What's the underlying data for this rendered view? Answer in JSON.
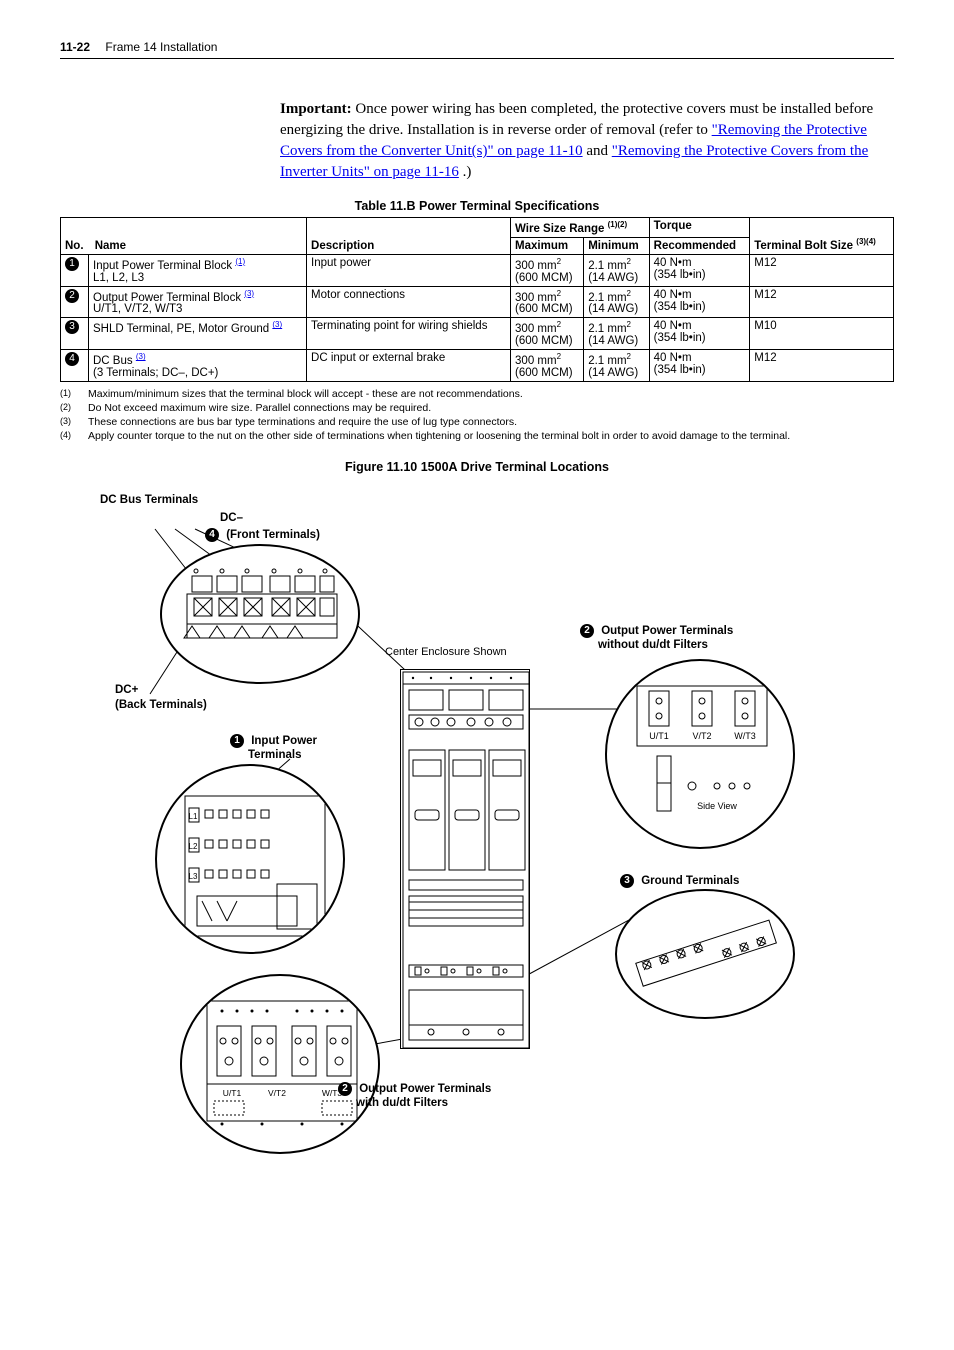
{
  "header": {
    "page_num": "11-22",
    "section": "Frame 14 Installation"
  },
  "important": {
    "label": "Important:",
    "text1": "Once power wiring has been completed, the protective covers must be installed before energizing the drive. Installation is in reverse order of removal (refer to ",
    "link1": "\"Removing the Protective Covers from the Converter Unit(s)\" on page 11-10",
    "text2": " and ",
    "link2": "\"Removing the Protective Covers from the Inverter Units\" on page 11-16",
    "text3": ".)"
  },
  "table_title": "Table 11.B   Power Terminal Specifications",
  "table": {
    "headers": {
      "no": "No.",
      "name": "Name",
      "desc": "Description",
      "wire_range": "Wire Size Range",
      "wire_sup": "(1)(2)",
      "max": "Maximum",
      "min": "Minimum",
      "torque": "Torque",
      "rec": "Recommended",
      "bolt": "Terminal Bolt Size",
      "bolt_sup": "(3)(4)"
    },
    "rows": [
      {
        "num": "1",
        "name": "Input Power Terminal Block",
        "name_sup": "(1)",
        "name_sub": "L1, L2, L3",
        "desc": "Input power",
        "max_a": "300 mm",
        "max_sup": "2",
        "max_b": "(600 MCM)",
        "min_a": "2.1 mm",
        "min_sup": "2",
        "min_b": "(14 AWG)",
        "torque_a": "40 N•m",
        "torque_b": "(354 lb•in)",
        "bolt": "M12"
      },
      {
        "num": "2",
        "name": "Output Power Terminal Block",
        "name_sup": "(3)",
        "name_sub": "U/T1, V/T2, W/T3",
        "desc": "Motor connections",
        "max_a": "300 mm",
        "max_sup": "2",
        "max_b": "(600 MCM)",
        "min_a": "2.1 mm",
        "min_sup": "2",
        "min_b": "(14 AWG)",
        "torque_a": "40 N•m",
        "torque_b": "(354 lb•in)",
        "bolt": "M12"
      },
      {
        "num": "3",
        "name": "SHLD Terminal, PE, Motor Ground",
        "name_sup": "(3)",
        "name_sub": "",
        "desc": "Terminating point for wiring shields",
        "max_a": "300 mm",
        "max_sup": "2",
        "max_b": "(600 MCM)",
        "min_a": "2.1 mm",
        "min_sup": "2",
        "min_b": "(14 AWG)",
        "torque_a": "40 N•m",
        "torque_b": "(354 lb•in)",
        "bolt": "M10"
      },
      {
        "num": "4",
        "name": "DC Bus",
        "name_sup": "(3)",
        "name_sub": "(3 Terminals; DC–, DC+)",
        "desc": "DC input or external brake",
        "max_a": "300 mm",
        "max_sup": "2",
        "max_b": "(600 MCM)",
        "min_a": "2.1 mm",
        "min_sup": "2",
        "min_b": "(14 AWG)",
        "torque_a": "40 N•m",
        "torque_b": "(354 lb•in)",
        "bolt": "M12"
      }
    ]
  },
  "footnotes": [
    {
      "num": "(1)",
      "text": "Maximum/minimum sizes that the terminal block will accept - these are not recommendations."
    },
    {
      "num": "(2)",
      "text": "Do Not exceed maximum wire size. Parallel connections may be required."
    },
    {
      "num": "(3)",
      "text": "These connections are bus bar type terminations and require the use of lug type connectors."
    },
    {
      "num": "(4)",
      "text": "Apply counter torque to the nut on the other side of terminations when tightening or loosening the terminal bolt in order to avoid damage to the terminal."
    }
  ],
  "figure_title": "Figure 11.10   1500A Drive Terminal Locations",
  "callouts": {
    "dc_bus_terminals": "DC Bus Terminals",
    "dc_minus": "DC–",
    "front_terminals": "(Front Terminals)",
    "dc_plus": "DC+",
    "back_terminals": "(Back Terminals)",
    "input_power": "Input Power",
    "terminals": "Terminals",
    "center_shown": "Center Enclosure Shown",
    "output_without": "Output Power Terminals",
    "without_dudt": "without du/dt Filters",
    "ground_terminals": "Ground Terminals",
    "output_with": "Output Power Terminals",
    "with_dudt": "with du/dt Filters",
    "side_view": "Side View",
    "ut1": "U/T1",
    "vt2": "V/T2",
    "wt3": "W/T3",
    "l1": "L1",
    "l2": "L2",
    "l3": "L3"
  },
  "circled_nums": {
    "n1": "1",
    "n2": "2",
    "n3": "3",
    "n4": "4"
  },
  "style": {
    "link_color": "#0000ee",
    "circle_stroke": "#000000"
  }
}
